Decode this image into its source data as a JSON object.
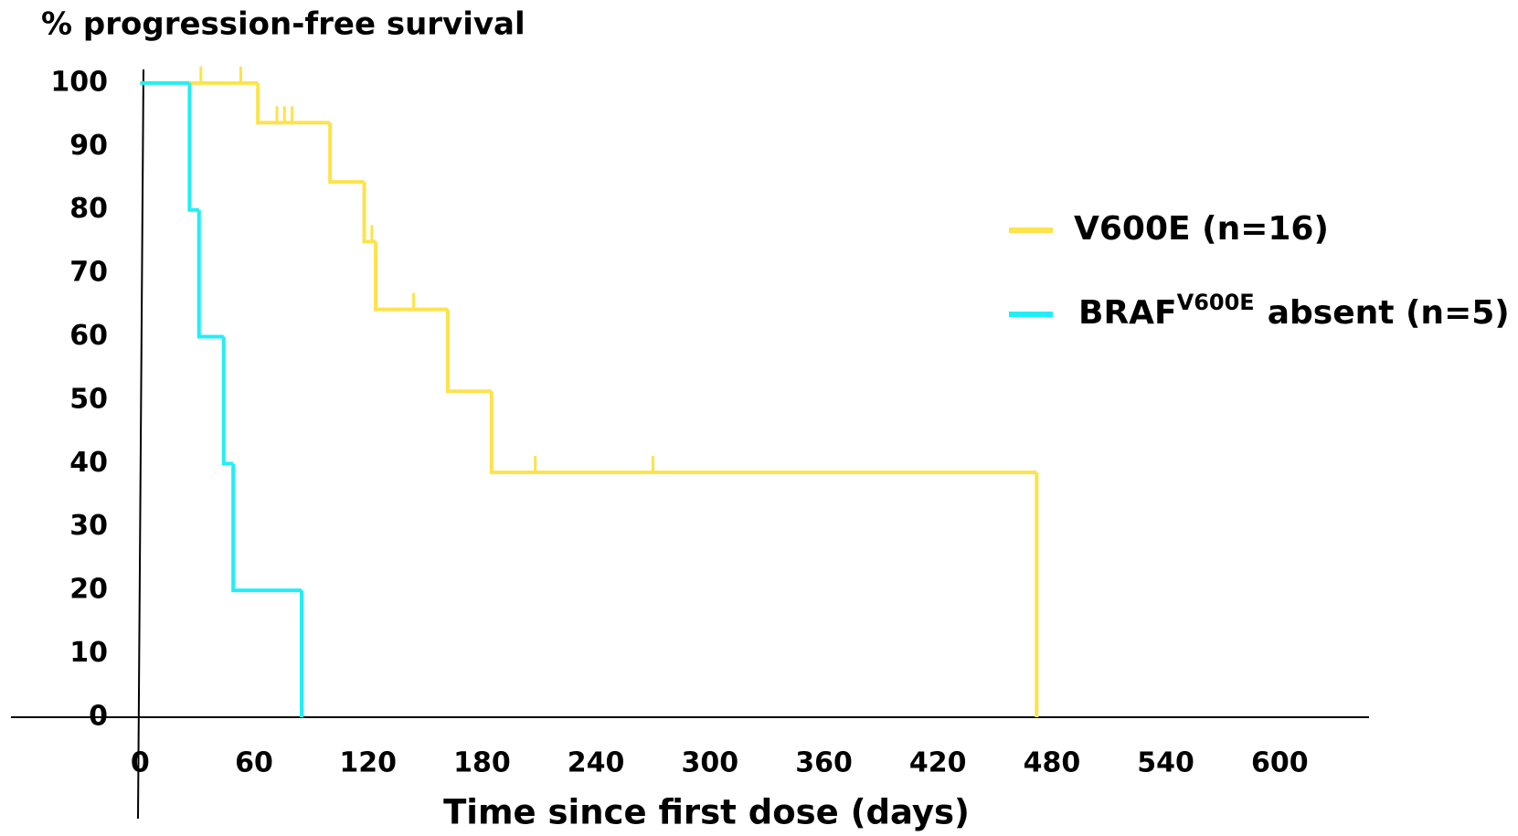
{
  "chart_data": {
    "type": "step",
    "title": "% progression-free survival",
    "x_label": "Time since first dose (days)",
    "xlim": [
      -68,
      647
    ],
    "ylim": [
      -16,
      102
    ],
    "xticks": [
      0,
      60,
      120,
      180,
      240,
      300,
      360,
      420,
      480,
      540,
      600
    ],
    "yticks": [
      0,
      10,
      20,
      30,
      40,
      50,
      60,
      70,
      80,
      90,
      100
    ],
    "series": [
      {
        "name": "V600E (n=16)",
        "color": "#fde34b",
        "x": [
          0,
          62,
          100,
          118,
          124,
          162,
          185,
          472
        ],
        "values": [
          100,
          93.75,
          84.4,
          75,
          64.3,
          51.4,
          38.6,
          0
        ],
        "censored": [
          32,
          53,
          72,
          76,
          80,
          122,
          144,
          208,
          270
        ]
      },
      {
        "name": [
          "BRAF",
          "V600E",
          "absent (n=5)"
        ],
        "color": "#22eef7",
        "x": [
          0,
          26,
          31,
          44,
          49,
          85
        ],
        "values": [
          100,
          80,
          60,
          40,
          20,
          0
        ],
        "censored": []
      }
    ]
  }
}
